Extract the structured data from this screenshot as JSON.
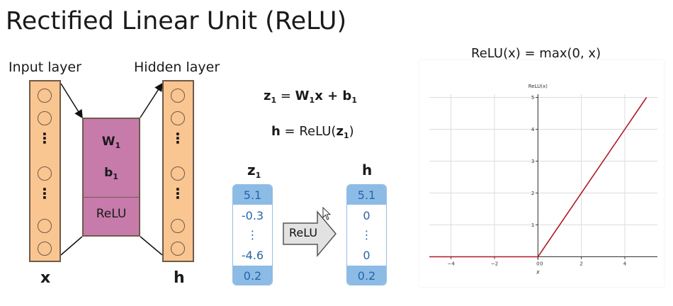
{
  "title": "Rectified Linear Unit (ReLU)",
  "network": {
    "input_layer_label": "Input layer",
    "hidden_layer_label": "Hidden layer",
    "input_symbol": "x",
    "hidden_symbol": "h",
    "weight_label": "W",
    "weight_sub": "1",
    "bias_label": "b",
    "bias_sub": "1",
    "activation_label": "ReLU",
    "dots": "⋮"
  },
  "equations": {
    "eq1": {
      "lhs": "z",
      "lhs_sub": "1",
      "eq": " = ",
      "w": "W",
      "w_sub": "1",
      "x": "x + ",
      "b": "b",
      "b_sub": "1"
    },
    "eq2": {
      "lhs": "h",
      "mid": " = ReLU(",
      "z": "z",
      "z_sub": "1",
      "close": ")"
    },
    "function": "ReLU(x) = max(0, x)"
  },
  "vectors": {
    "z_label": "z",
    "z_sub": "1",
    "h_label": "h",
    "z_values": [
      "5.1",
      "-0.3",
      "⋮",
      "-4.6",
      "0.2"
    ],
    "h_values": [
      "5.1",
      "0",
      "⋮",
      "0",
      "0.2"
    ],
    "arrow_label": "ReLU"
  },
  "chart_data": {
    "type": "line",
    "title": "ReLU(x)",
    "xlabel": "x",
    "ylabel": "",
    "xlim": [
      -5,
      5.5
    ],
    "ylim": [
      -0.1,
      5.1
    ],
    "xticks": [
      -4,
      -2,
      0,
      2,
      4
    ],
    "yticks": [
      1,
      2,
      3,
      4,
      5
    ],
    "grid": true,
    "series": [
      {
        "name": "",
        "color": "#b0192a",
        "x": [
          -5,
          0,
          5
        ],
        "y": [
          0,
          0,
          5
        ]
      }
    ]
  },
  "colors": {
    "layer_fill": "#f9c590",
    "weights_fill": "#c77bab",
    "vector_blue": "#2566a8",
    "relu_line": "#b0192a"
  }
}
